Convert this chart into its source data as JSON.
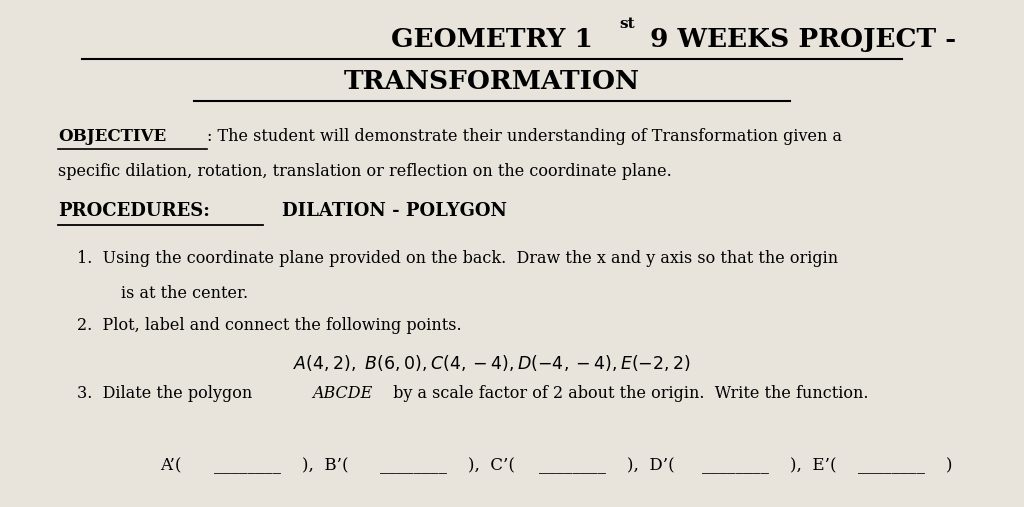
{
  "bg_color": "#e8e4dc",
  "title_line1_a": "GEOMETRY 1",
  "title_superscript": "st",
  "title_line1_b": " 9 WEEKS PROJECT -",
  "title_line2": "TRANSFORMATION",
  "objective_label": "OBJECTIVE",
  "objective_colon_text": ": The student will demonstrate their understanding of Transformation given a",
  "objective_line2": "specific dilation, rotation, translation or reflection on the coordinate plane.",
  "procedures_label": "PROCEDURES:",
  "procedures_text": "DILATION - POLYGON",
  "item1_a": "1.  Using the coordinate plane provided on the back.  Draw the x and y axis so that the origin",
  "item1_b": "is at the center.",
  "item2_a": "2.  Plot, label and connect the following points.",
  "item2_points": "A(4,2),  B(6,0), C(4,−4), D(−4,−4), E(−2,2)",
  "item3_pre": "3.  Dilate the polygon ",
  "item3_italic": "ABCDE",
  "item3_post": " by a scale factor of 2 about the origin.  Write the function.",
  "bottom_a": "A’(",
  "bottom_b": "),  B’(",
  "bottom_c": "),  C’(",
  "bottom_d": "),  D’(",
  "bottom_e": "),  E’(",
  "bottom_f": ")"
}
